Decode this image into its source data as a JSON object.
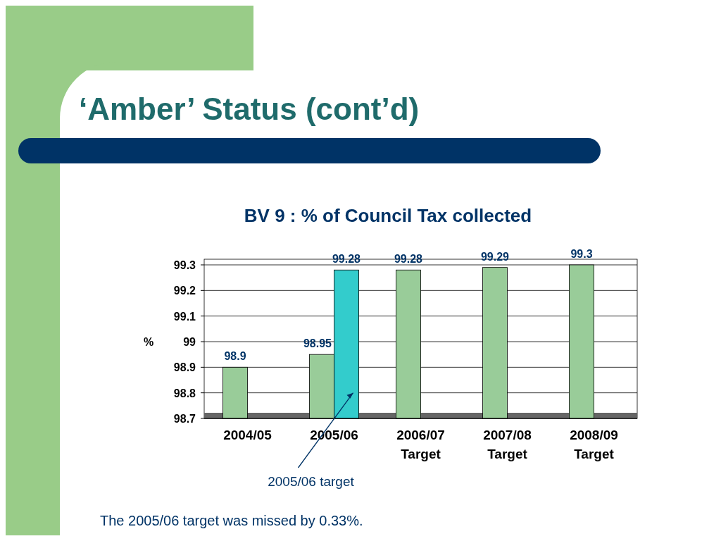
{
  "chart_data": {
    "type": "bar",
    "title": "‘Amber’ Status (cont’d)",
    "subtitle": "BV 9 : % of Council Tax collected",
    "ylabel": "%",
    "categories": [
      "2004/05",
      "2005/06",
      "2006/07\nTarget",
      "2007/08\nTarget",
      "2008/09\nTarget"
    ],
    "series": [
      {
        "color": "#99cc99",
        "values": [
          98.9,
          98.95,
          99.28,
          99.29,
          99.3
        ]
      },
      {
        "color": "#33cccc",
        "values": [
          null,
          99.28,
          null,
          null,
          null
        ]
      }
    ],
    "ylim": [
      98.7,
      99.3
    ],
    "yticks": [
      98.7,
      98.8,
      98.9,
      99,
      99.1,
      99.2,
      99.3
    ],
    "grid": "y",
    "data_labels": true,
    "annotations": [
      "2005/06 target",
      "The 2005/06 target was missed by 0.33%."
    ]
  }
}
